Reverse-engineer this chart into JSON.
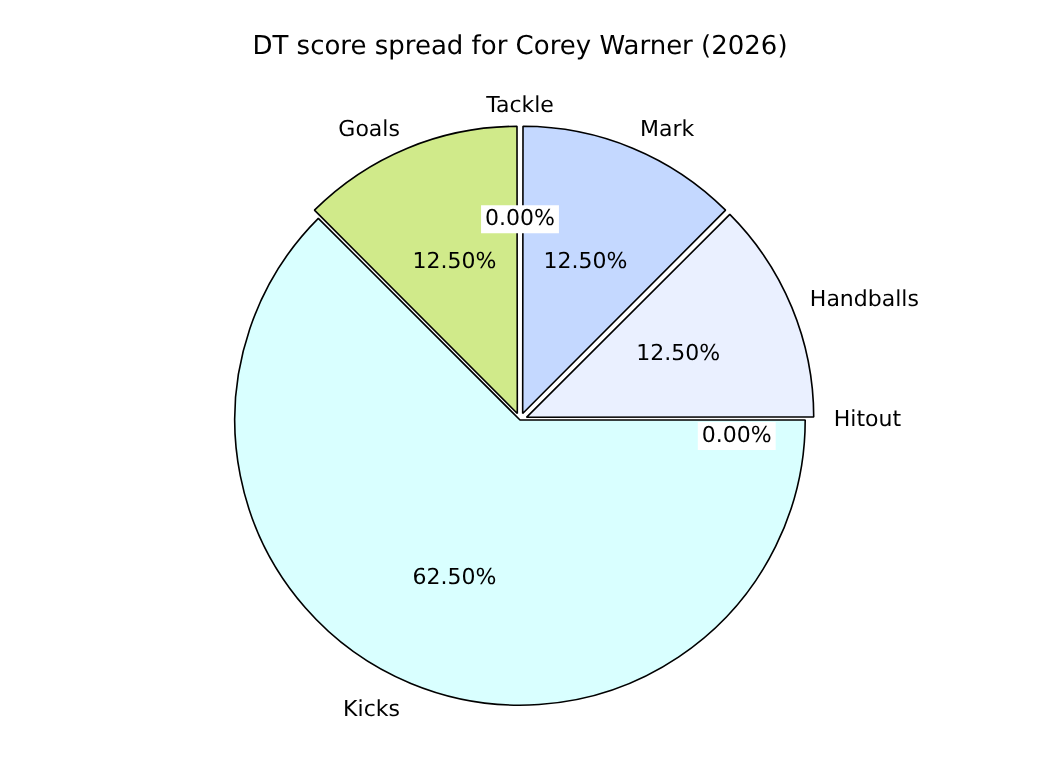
{
  "chart_data": {
    "type": "pie",
    "title": "DT score spread for Corey Warner (2026)",
    "categories": [
      "Kicks",
      "Goals",
      "Tackle",
      "Mark",
      "Handballs",
      "Hitout"
    ],
    "values": [
      62.5,
      12.5,
      0,
      12.5,
      12.5,
      0
    ],
    "colors": [
      "#d9ffff",
      "#d0ea8a",
      "#e0e0e0",
      "#c4d8ff",
      "#eaf0ff",
      "#f0f0f0"
    ],
    "value_labels": [
      "62.50%",
      "12.50%",
      "0.00%",
      "12.50%",
      "12.50%",
      "0.00%"
    ],
    "legend": false
  }
}
